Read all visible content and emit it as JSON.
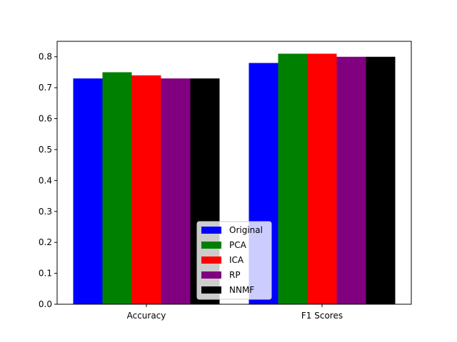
{
  "chart_data": {
    "type": "bar",
    "categories": [
      "Accuracy",
      "F1 Scores"
    ],
    "series": [
      {
        "name": "Original",
        "color": "#0000ff",
        "values": [
          0.73,
          0.78
        ]
      },
      {
        "name": "PCA",
        "color": "#008000",
        "values": [
          0.75,
          0.81
        ]
      },
      {
        "name": "ICA",
        "color": "#ff0000",
        "values": [
          0.74,
          0.81
        ]
      },
      {
        "name": "RP",
        "color": "#800080",
        "values": [
          0.73,
          0.8
        ]
      },
      {
        "name": "NNMF",
        "color": "#000000",
        "values": [
          0.73,
          0.8
        ]
      }
    ],
    "ylim": [
      0,
      0.85
    ],
    "yticks": [
      "0.0",
      "0.1",
      "0.2",
      "0.3",
      "0.4",
      "0.5",
      "0.6",
      "0.7",
      "0.8"
    ],
    "title": "",
    "xlabel": "",
    "ylabel": "",
    "legend_position": "lower center",
    "grid": false
  }
}
